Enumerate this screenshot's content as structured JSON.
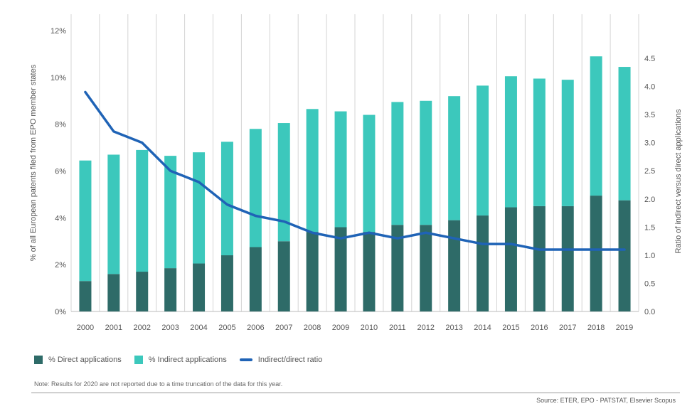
{
  "chart_data": {
    "type": "bar",
    "stacked": true,
    "categories": [
      "2000",
      "2001",
      "2002",
      "2003",
      "2004",
      "2005",
      "2006",
      "2007",
      "2008",
      "2009",
      "2010",
      "2011",
      "2012",
      "2013",
      "2014",
      "2015",
      "2016",
      "2017",
      "2018",
      "2019"
    ],
    "series": [
      {
        "name": "% Direct applications",
        "type": "bar",
        "color": "#2e6b68",
        "values": [
          1.3,
          1.6,
          1.7,
          1.85,
          2.05,
          2.4,
          2.75,
          3.0,
          3.4,
          3.6,
          3.4,
          3.7,
          3.7,
          3.9,
          4.1,
          4.45,
          4.5,
          4.5,
          4.95,
          4.75
        ]
      },
      {
        "name": "% Indirect applications",
        "type": "bar",
        "color": "#3cc8bc",
        "values": [
          5.15,
          5.1,
          5.2,
          4.8,
          4.75,
          4.85,
          5.05,
          5.05,
          5.25,
          4.95,
          5.0,
          5.25,
          5.3,
          5.3,
          5.55,
          5.6,
          5.45,
          5.4,
          5.95,
          5.7
        ]
      },
      {
        "name": "Indirect/direct ratio",
        "type": "line",
        "axis": "right",
        "color": "#1f63b6",
        "values": [
          3.9,
          3.2,
          3.0,
          2.5,
          2.3,
          1.9,
          1.7,
          1.6,
          1.4,
          1.3,
          1.4,
          1.3,
          1.4,
          1.3,
          1.2,
          1.2,
          1.1,
          1.1,
          1.1,
          1.1
        ]
      }
    ],
    "ylabel": "% of all European patents filed from EPO member states",
    "y2label": "Ratio of indirect versus direct applications",
    "ylim": [
      0,
      12
    ],
    "y2lim": [
      0,
      4.5
    ],
    "yticks": [
      "0%",
      "2%",
      "4%",
      "6%",
      "8%",
      "10%",
      "12%"
    ],
    "y2ticks": [
      "0.0",
      "0.5",
      "1.0",
      "1.5",
      "2.0",
      "2.5",
      "3.0",
      "3.5",
      "4.0",
      "4.5"
    ],
    "grid": "vertical",
    "legend_position": "bottom-left"
  },
  "note": "Note: Results for 2020 are not reported due to a time truncation of the data for this year.",
  "source": "Source: ETER, EPO - PATSTAT, Elsevier Scopus"
}
